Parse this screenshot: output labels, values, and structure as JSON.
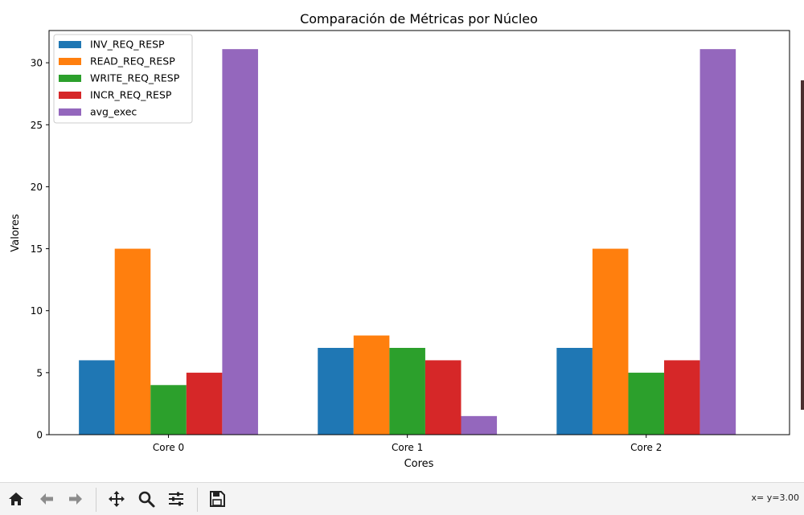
{
  "chart_data": {
    "type": "bar",
    "title": "Comparación de Métricas por Núcleo",
    "xlabel": "Cores",
    "ylabel": "Valores",
    "categories": [
      "Core 0",
      "Core 1",
      "Core 2"
    ],
    "series": [
      {
        "name": "INV_REQ_RESP",
        "color": "#1f77b4",
        "values": [
          6,
          7,
          7
        ]
      },
      {
        "name": "READ_REQ_RESP",
        "color": "#ff7f0e",
        "values": [
          15,
          8,
          15
        ]
      },
      {
        "name": "WRITE_REQ_RESP",
        "color": "#2ca02c",
        "values": [
          4,
          7,
          5
        ]
      },
      {
        "name": "INCR_REQ_RESP",
        "color": "#d62728",
        "values": [
          5,
          6,
          6
        ]
      },
      {
        "name": "avg_exec",
        "color": "#9467bd",
        "values": [
          31.1,
          1.5,
          31.1
        ]
      }
    ],
    "ylim": [
      0,
      32.6
    ],
    "yticks": [
      0,
      5,
      10,
      15,
      20,
      25,
      30
    ],
    "grid": false,
    "legend_position": "top-left"
  },
  "toolbar": {
    "buttons": [
      {
        "name": "home-button",
        "icon": "home-icon"
      },
      {
        "name": "back-button",
        "icon": "arrow-left-icon"
      },
      {
        "name": "forward-button",
        "icon": "arrow-right-icon"
      },
      {
        "name": "pan-button",
        "icon": "move-icon"
      },
      {
        "name": "zoom-button",
        "icon": "magnifier-icon"
      },
      {
        "name": "configure-subplots-button",
        "icon": "sliders-icon"
      },
      {
        "name": "save-button",
        "icon": "floppy-disk-icon"
      }
    ],
    "coords_text": "x= y=3.00"
  }
}
